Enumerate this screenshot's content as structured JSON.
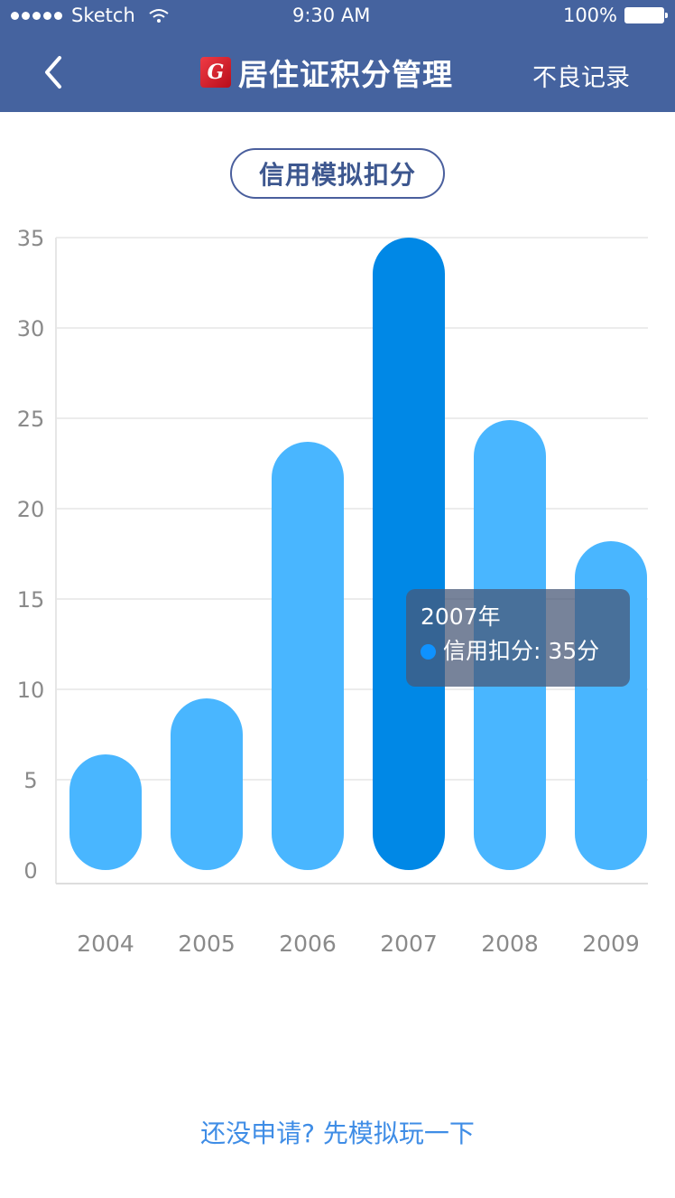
{
  "status_bar": {
    "carrier": "Sketch",
    "time": "9:30 AM",
    "battery": "100%",
    "icons": {
      "signal": "signal-dots-icon",
      "wifi": "wifi-icon",
      "battery": "battery-icon"
    }
  },
  "header": {
    "back_icon": "chevron-left-icon",
    "logo_icon": "logo-icon",
    "title": "居住证积分管理",
    "right_action": "不良记录"
  },
  "filter": {
    "label": "信用模拟扣分"
  },
  "chart_data": {
    "type": "bar",
    "categories": [
      "2004",
      "2005",
      "2006",
      "2007",
      "2008",
      "2009"
    ],
    "values": [
      6.4,
      9.5,
      23.7,
      35,
      24.9,
      18.2
    ],
    "ylim": [
      0,
      35
    ],
    "yticks": [
      0,
      5,
      10,
      15,
      20,
      25,
      30,
      35
    ],
    "grid": true,
    "highlight_category": "2007",
    "tooltip": {
      "title": "2007年",
      "label": "信用扣分: 35分"
    },
    "colors": {
      "bar": "#49b6ff",
      "highlight": "#0088e6",
      "tooltip_dot": "#0f92ff",
      "axis_text": "#8a8a8a",
      "grid": "#ececec"
    }
  },
  "footer": {
    "link": "还没申请? 先模拟玩一下"
  }
}
